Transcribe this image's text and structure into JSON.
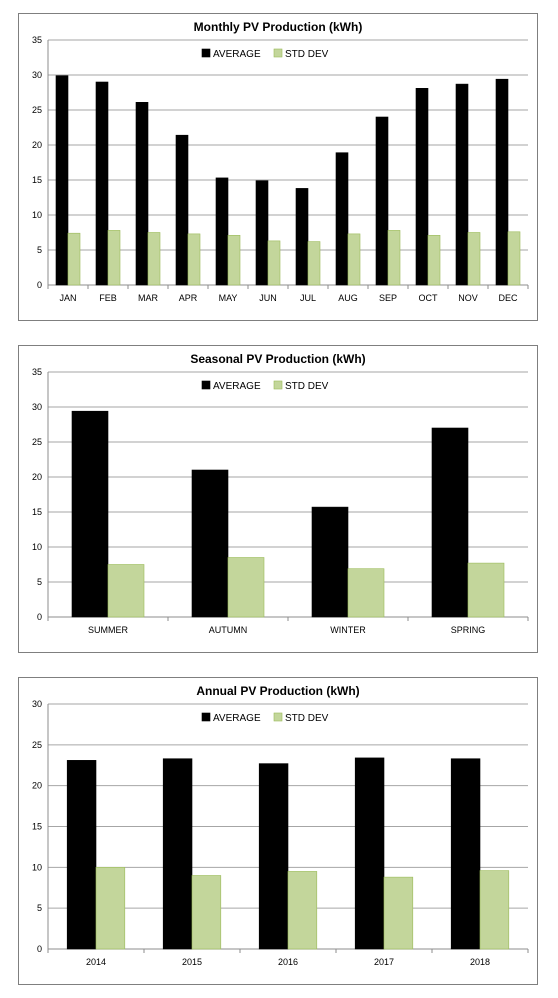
{
  "chart_data": [
    {
      "type": "bar",
      "title": "Monthly PV Production  (kWh)",
      "categories": [
        "JAN",
        "FEB",
        "MAR",
        "APR",
        "MAY",
        "JUN",
        "JUL",
        "AUG",
        "SEP",
        "OCT",
        "NOV",
        "DEC"
      ],
      "series": [
        {
          "name": "AVERAGE",
          "color": "#000000",
          "values": [
            29.9,
            29.0,
            26.1,
            21.4,
            15.3,
            14.9,
            13.8,
            18.9,
            24.0,
            28.1,
            28.7,
            29.4
          ]
        },
        {
          "name": "STD DEV",
          "color": "#c3d69b",
          "values": [
            7.4,
            7.8,
            7.5,
            7.3,
            7.1,
            6.3,
            6.2,
            7.3,
            7.8,
            7.1,
            7.5,
            7.6
          ]
        }
      ],
      "ylim": [
        0,
        35
      ],
      "yticks": [
        0,
        5,
        10,
        15,
        20,
        25,
        30,
        35
      ],
      "grid": true,
      "legend": "top-center"
    },
    {
      "type": "bar",
      "title": "Seasonal PV Production  (kWh)",
      "categories": [
        "SUMMER",
        "AUTUMN",
        "WINTER",
        "SPRING"
      ],
      "series": [
        {
          "name": "AVERAGE",
          "color": "#000000",
          "values": [
            29.4,
            21.0,
            15.7,
            27.0
          ]
        },
        {
          "name": "STD DEV",
          "color": "#c3d69b",
          "values": [
            7.5,
            8.5,
            6.9,
            7.7
          ]
        }
      ],
      "ylim": [
        0,
        35
      ],
      "yticks": [
        0,
        5,
        10,
        15,
        20,
        25,
        30,
        35
      ],
      "grid": true,
      "legend": "top-center"
    },
    {
      "type": "bar",
      "title": "Annual PV Production  (kWh)",
      "categories": [
        "2014",
        "2015",
        "2016",
        "2017",
        "2018"
      ],
      "series": [
        {
          "name": "AVERAGE",
          "color": "#000000",
          "values": [
            23.1,
            23.3,
            22.7,
            23.4,
            23.3
          ]
        },
        {
          "name": "STD DEV",
          "color": "#c3d69b",
          "values": [
            10.0,
            9.0,
            9.5,
            8.8,
            9.6
          ]
        }
      ],
      "ylim": [
        0,
        30
      ],
      "yticks": [
        0,
        5,
        10,
        15,
        20,
        25,
        30
      ],
      "grid": true,
      "legend": "top-center"
    }
  ]
}
